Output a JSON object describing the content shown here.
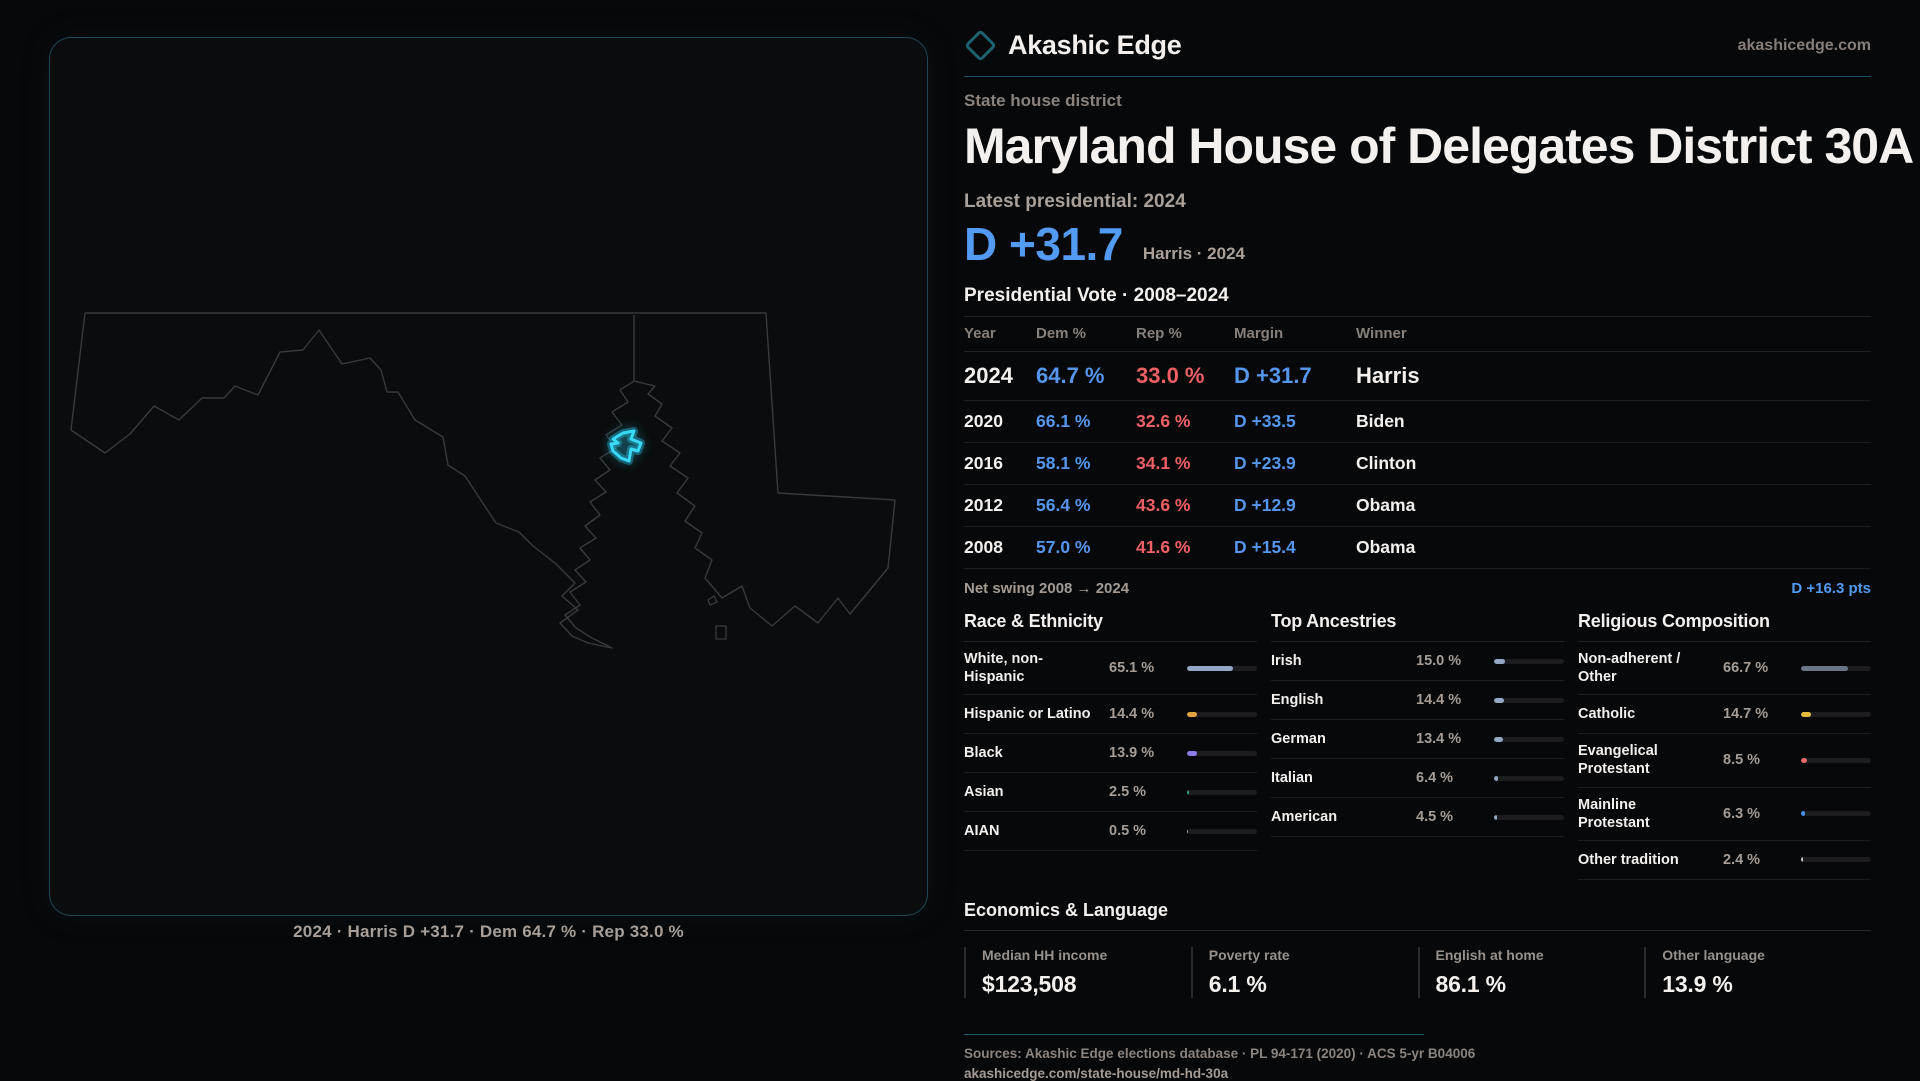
{
  "brand": {
    "name": "Akashic Edge",
    "site": "akashicedge.com"
  },
  "map": {
    "caption": "2024 · Harris D +31.7 · Dem 64.7 % · Rep 33.0 %"
  },
  "header": {
    "eyebrow": "State house district",
    "title": "Maryland House of Delegates District 30A",
    "latest_label": "Latest presidential: 2024",
    "margin_big": "D +31.7",
    "margin_context": "Harris · 2024"
  },
  "vote_table": {
    "title": "Presidential Vote · 2008–2024",
    "columns": [
      "Year",
      "Dem %",
      "Rep %",
      "Margin",
      "Winner"
    ],
    "rows": [
      {
        "year": "2024",
        "dem": "64.7 %",
        "rep": "33.0 %",
        "margin": "D +31.7",
        "winner": "Harris",
        "big": true
      },
      {
        "year": "2020",
        "dem": "66.1 %",
        "rep": "32.6 %",
        "margin": "D +33.5",
        "winner": "Biden"
      },
      {
        "year": "2016",
        "dem": "58.1 %",
        "rep": "34.1 %",
        "margin": "D +23.9",
        "winner": "Clinton"
      },
      {
        "year": "2012",
        "dem": "56.4 %",
        "rep": "43.6 %",
        "margin": "D +12.9",
        "winner": "Obama"
      },
      {
        "year": "2008",
        "dem": "57.0 %",
        "rep": "41.6 %",
        "margin": "D +15.4",
        "winner": "Obama"
      }
    ]
  },
  "net_swing": {
    "label": "Net swing 2008 → 2024",
    "value": "D +16.3 pts"
  },
  "demographics": {
    "race": {
      "title": "Race & Ethnicity",
      "rows": [
        {
          "label": "White, non-Hispanic",
          "value": "65.1 %",
          "pct": 65.1,
          "color": "#93a7c7"
        },
        {
          "label": "Hispanic or Latino",
          "value": "14.4 %",
          "pct": 14.4,
          "color": "#e2a33c"
        },
        {
          "label": "Black",
          "value": "13.9 %",
          "pct": 13.9,
          "color": "#8d7ce8"
        },
        {
          "label": "Asian",
          "value": "2.5 %",
          "pct": 2.5,
          "color": "#2aa374"
        },
        {
          "label": "AIAN",
          "value": "0.5 %",
          "pct": 0.5,
          "color": "#9aa0a8"
        }
      ]
    },
    "ancestries": {
      "title": "Top Ancestries",
      "rows": [
        {
          "label": "Irish",
          "value": "15.0 %",
          "pct": 15.0,
          "color": "#93a7c7"
        },
        {
          "label": "English",
          "value": "14.4 %",
          "pct": 14.4,
          "color": "#93a7c7"
        },
        {
          "label": "German",
          "value": "13.4 %",
          "pct": 13.4,
          "color": "#93a7c7"
        },
        {
          "label": "Italian",
          "value": "6.4 %",
          "pct": 6.4,
          "color": "#93a7c7"
        },
        {
          "label": "American",
          "value": "4.5 %",
          "pct": 4.5,
          "color": "#93a7c7"
        }
      ]
    },
    "religion": {
      "title": "Religious Composition",
      "rows": [
        {
          "label": "Non-adherent / Other",
          "value": "66.7 %",
          "pct": 66.7,
          "color": "#6a7588"
        },
        {
          "label": "Catholic",
          "value": "14.7 %",
          "pct": 14.7,
          "color": "#e2ba3c"
        },
        {
          "label": "Evangelical Protestant",
          "value": "8.5 %",
          "pct": 8.5,
          "color": "#e26a6a"
        },
        {
          "label": "Mainline Protestant",
          "value": "6.3 %",
          "pct": 6.3,
          "color": "#4a90e8"
        },
        {
          "label": "Other tradition",
          "value": "2.4 %",
          "pct": 2.4,
          "color": "#c9c9c9"
        }
      ]
    }
  },
  "economics": {
    "title": "Economics & Language",
    "stats": [
      {
        "label": "Median HH income",
        "value": "$123,508"
      },
      {
        "label": "Poverty rate",
        "value": "6.1 %"
      },
      {
        "label": "English at home",
        "value": "86.1 %"
      },
      {
        "label": "Other language",
        "value": "13.9 %"
      }
    ]
  },
  "footer": {
    "sources": "Sources: Akashic Edge elections database · PL 94-171 (2020) · ACS 5-yr B04006",
    "permalink": "akashicedge.com/state-house/md-hd-30a"
  },
  "colors": {
    "dem": "#5596ef",
    "rep": "#ef6066",
    "district": "#38dbf7",
    "accent_line": "#155261"
  }
}
